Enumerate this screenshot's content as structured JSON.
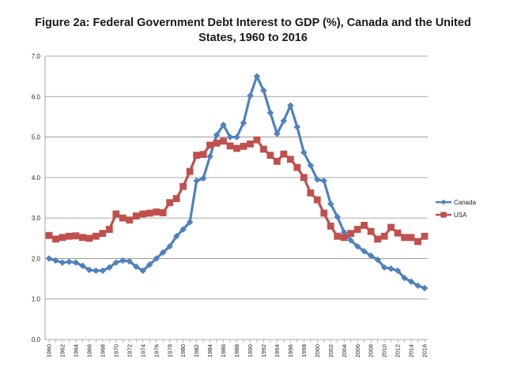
{
  "chart_data": {
    "type": "line",
    "title": "Figure 2a: Federal Government Debt Interest to GDP (%), Canada and the United States, 1960 to 2016",
    "xlabel": "",
    "ylabel": "",
    "ylim": [
      0,
      7
    ],
    "yticks": [
      "0.0",
      "1.0",
      "2.0",
      "3.0",
      "4.0",
      "5.0",
      "6.0",
      "7.0"
    ],
    "xlim": [
      1960,
      2016
    ],
    "xtick_labels": [
      "1960",
      "1962",
      "1964",
      "1966",
      "1968",
      "1970",
      "1972",
      "1974",
      "1976",
      "1978",
      "1980",
      "1982",
      "1984",
      "1986",
      "1988",
      "1990",
      "1992",
      "1994",
      "1996",
      "1998",
      "2000",
      "2002",
      "2004",
      "2006",
      "2008",
      "2010",
      "2012",
      "2014",
      "2016"
    ],
    "grid": "horizontal",
    "legend_position": "right",
    "x": [
      1960,
      1961,
      1962,
      1963,
      1964,
      1965,
      1966,
      1967,
      1968,
      1969,
      1970,
      1971,
      1972,
      1973,
      1974,
      1975,
      1976,
      1977,
      1978,
      1979,
      1980,
      1981,
      1982,
      1983,
      1984,
      1985,
      1986,
      1987,
      1988,
      1989,
      1990,
      1991,
      1992,
      1993,
      1994,
      1995,
      1996,
      1997,
      1998,
      1999,
      2000,
      2001,
      2002,
      2003,
      2004,
      2005,
      2006,
      2007,
      2008,
      2009,
      2010,
      2011,
      2012,
      2013,
      2014,
      2015,
      2016
    ],
    "series": [
      {
        "name": "Canada",
        "color": "#4f81bd",
        "marker": "diamond",
        "values": [
          2.0,
          1.95,
          1.9,
          1.92,
          1.9,
          1.82,
          1.72,
          1.7,
          1.7,
          1.78,
          1.9,
          1.95,
          1.93,
          1.8,
          1.7,
          1.85,
          2.0,
          2.15,
          2.3,
          2.55,
          2.72,
          2.9,
          3.92,
          3.98,
          4.52,
          5.05,
          5.3,
          5.0,
          5.0,
          5.35,
          6.02,
          6.5,
          6.15,
          5.6,
          5.08,
          5.4,
          5.78,
          5.25,
          4.62,
          4.3,
          3.95,
          3.92,
          3.35,
          3.03,
          2.65,
          2.45,
          2.3,
          2.18,
          2.07,
          1.97,
          1.78,
          1.75,
          1.7,
          1.52,
          1.43,
          1.33,
          1.27
        ]
      },
      {
        "name": "USA",
        "color": "#c0504d",
        "marker": "square",
        "values": [
          2.57,
          2.48,
          2.52,
          2.55,
          2.56,
          2.52,
          2.5,
          2.55,
          2.62,
          2.72,
          3.1,
          3.0,
          2.95,
          3.05,
          3.1,
          3.12,
          3.15,
          3.13,
          3.38,
          3.48,
          3.78,
          4.15,
          4.55,
          4.57,
          4.8,
          4.85,
          4.9,
          4.78,
          4.72,
          4.77,
          4.83,
          4.93,
          4.7,
          4.55,
          4.4,
          4.58,
          4.45,
          4.25,
          4.0,
          3.62,
          3.45,
          3.12,
          2.8,
          2.55,
          2.52,
          2.62,
          2.72,
          2.82,
          2.67,
          2.48,
          2.55,
          2.77,
          2.63,
          2.52,
          2.52,
          2.42,
          2.55
        ]
      }
    ]
  }
}
